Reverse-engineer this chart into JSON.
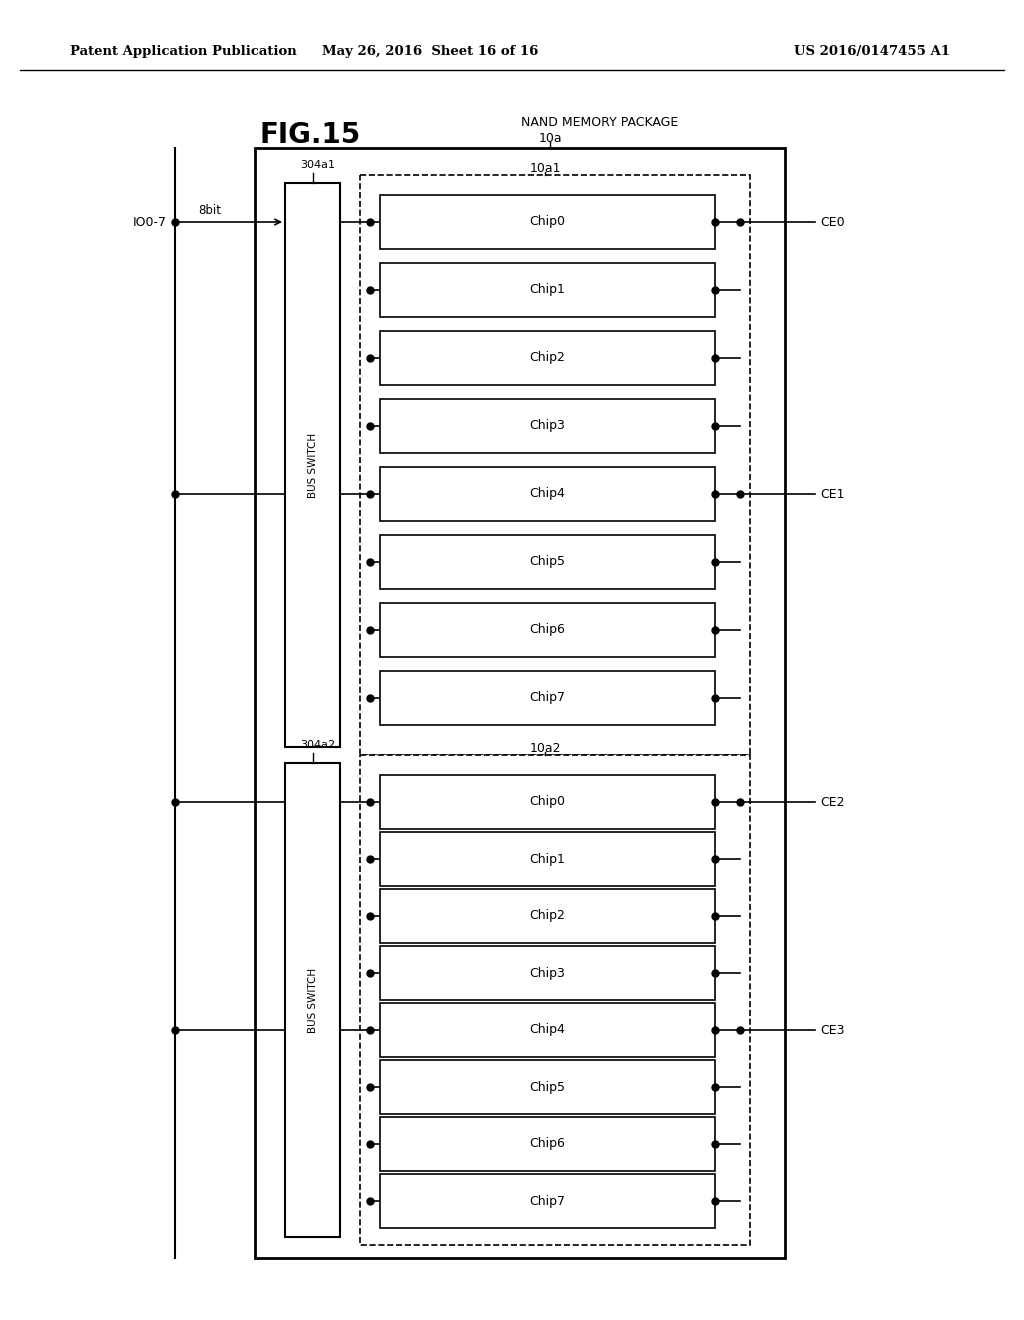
{
  "bg_color": "#ffffff",
  "header_left": "Patent Application Publication",
  "header_mid": "May 26, 2016  Sheet 16 of 16",
  "header_right": "US 2016/0147455 A1",
  "fig_label": "FIG.15",
  "nand_label": "NAND MEMORY PACKAGE",
  "pkg_label": "10a",
  "section1_label": "10a1",
  "section2_label": "10a2",
  "bus_switch1_label": "304a1",
  "bus_switch2_label": "304a2",
  "chips": [
    "Chip0",
    "Chip1",
    "Chip2",
    "Chip3",
    "Chip4",
    "Chip5",
    "Chip6",
    "Chip7"
  ],
  "io_label": "IO0-7",
  "bit_label": "8bit",
  "ce0": "CE0",
  "ce1": "CE1",
  "ce2": "CE2",
  "ce3": "CE3"
}
